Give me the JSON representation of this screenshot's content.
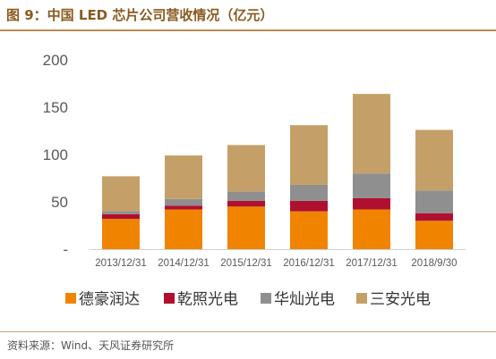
{
  "title": "图 9：中国 LED 芯片公司营收情况（亿元）",
  "source": "资料来源：Wind、天风证券研究所",
  "colors": {
    "title": "#8a5a1f",
    "rule": "#b98d54"
  },
  "chart_data": {
    "type": "bar",
    "stacked": true,
    "categories": [
      "2013/12/31",
      "2014/12/31",
      "2015/12/31",
      "2016/12/31",
      "2017/12/31",
      "2018/9/30"
    ],
    "series": [
      {
        "name": "德豪润达",
        "color": "#f08400",
        "values": [
          32,
          42,
          45,
          40,
          42,
          30
        ]
      },
      {
        "name": "乾照光电",
        "color": "#b01030",
        "values": [
          5,
          4,
          6,
          11,
          12,
          8
        ]
      },
      {
        "name": "华灿光电",
        "color": "#8f8f8f",
        "values": [
          3,
          7,
          10,
          17,
          26,
          24
        ]
      },
      {
        "name": "三安光电",
        "color": "#c4a068",
        "values": [
          37,
          46,
          49,
          63,
          84,
          64
        ]
      }
    ],
    "yticks": [
      "-",
      "50",
      "100",
      "150",
      "200"
    ],
    "ylim": [
      0,
      200
    ],
    "grid": false,
    "legend": "bottom"
  }
}
